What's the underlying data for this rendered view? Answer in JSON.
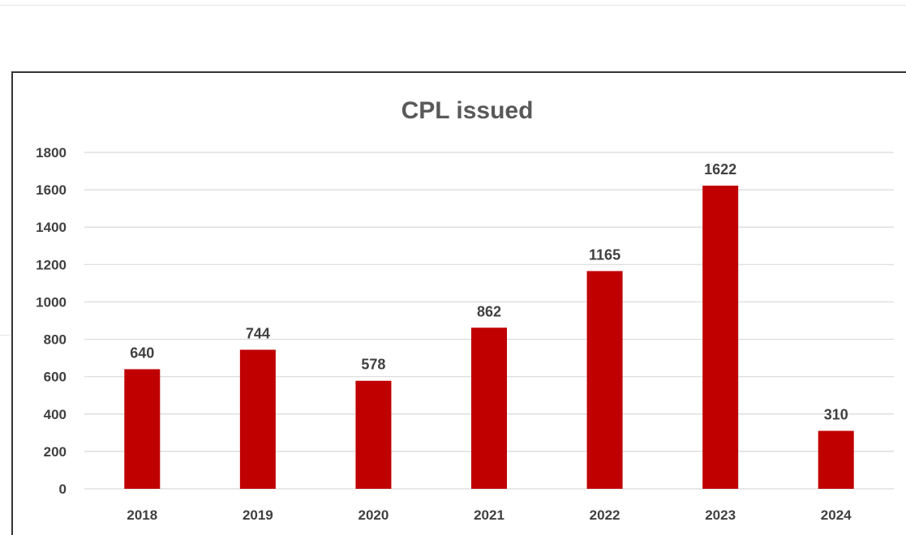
{
  "colors": {
    "bar": "#c00000",
    "gridline": "#d9d9d9",
    "text": "#404040",
    "title": "#595959"
  },
  "chart_data": {
    "type": "bar",
    "title": "CPL issued",
    "xlabel": "",
    "ylabel": "",
    "categories": [
      "2018",
      "2019",
      "2020",
      "2021",
      "2022",
      "2023",
      "2024"
    ],
    "values": [
      640,
      744,
      578,
      862,
      1165,
      1622,
      310
    ],
    "ylim": [
      0,
      1800
    ],
    "yticks": [
      "0",
      "200",
      "400",
      "600",
      "800",
      "1000",
      "1200",
      "1400",
      "1600",
      "1800"
    ],
    "grid": true,
    "legend": "none",
    "data_labels": true
  }
}
